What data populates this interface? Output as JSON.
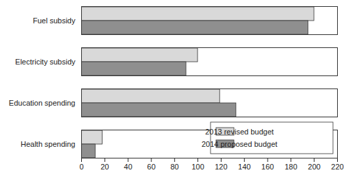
{
  "chart_data": {
    "type": "bar",
    "orientation": "horizontal",
    "categories": [
      "Fuel subsidy",
      "Electricity subsidy",
      "Education spending",
      "Health spending"
    ],
    "series": [
      {
        "name": "2013 revised budget",
        "color": "#d9d9d9",
        "values": [
          200,
          100,
          119,
          18
        ]
      },
      {
        "name": "2014 proposed budget",
        "color": "#8f8f8f",
        "values": [
          195,
          90,
          133,
          12
        ]
      }
    ],
    "xlim": [
      0,
      220
    ],
    "xticks": [
      0,
      20,
      40,
      60,
      80,
      100,
      120,
      140,
      160,
      180,
      200,
      220
    ],
    "grid": false,
    "legend": "lower right"
  }
}
